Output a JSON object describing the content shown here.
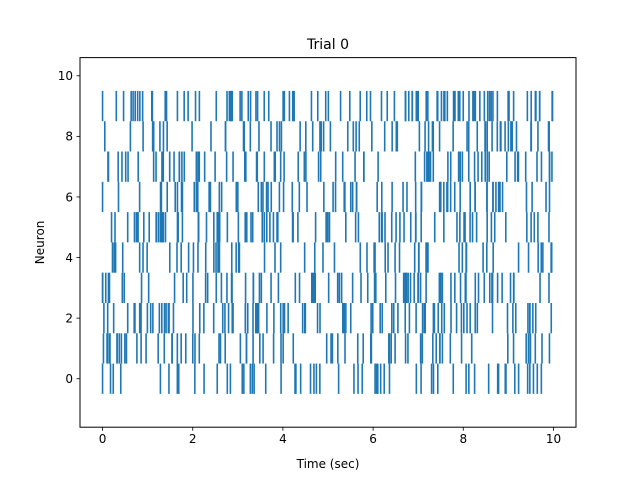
{
  "chart_data": {
    "type": "raster",
    "title": "Trial 0",
    "xlabel": "Time (sec)",
    "ylabel": "Neuron",
    "xlim": [
      -0.5,
      10.5
    ],
    "ylim": [
      -1.6,
      10.6
    ],
    "xticks": [
      0,
      2,
      4,
      6,
      8,
      10
    ],
    "yticks": [
      0,
      2,
      4,
      6,
      8,
      10
    ],
    "grid": false,
    "legend": "none",
    "duration": [
      0,
      10
    ],
    "line_offset_range": [
      -0.5,
      0.5
    ],
    "color": "#1f77b4",
    "neurons": [
      {
        "neuron": 0,
        "spike_rate": 6,
        "first_spike": 0.0
      },
      {
        "neuron": 1,
        "spike_rate": 7,
        "first_spike": 0.02
      },
      {
        "neuron": 2,
        "spike_rate": 8,
        "first_spike": 0.03
      },
      {
        "neuron": 3,
        "spike_rate": 8,
        "first_spike": 0.0
      },
      {
        "neuron": 4,
        "spike_rate": 7,
        "first_spike": 0.22
      },
      {
        "neuron": 5,
        "spike_rate": 7,
        "first_spike": 0.2
      },
      {
        "neuron": 6,
        "spike_rate": 7,
        "first_spike": 0.0
      },
      {
        "neuron": 7,
        "spike_rate": 7,
        "first_spike": 0.12
      },
      {
        "neuron": 8,
        "spike_rate": 8,
        "first_spike": 0.05
      },
      {
        "neuron": 9,
        "spike_rate": 9,
        "first_spike": 0.0
      }
    ]
  }
}
